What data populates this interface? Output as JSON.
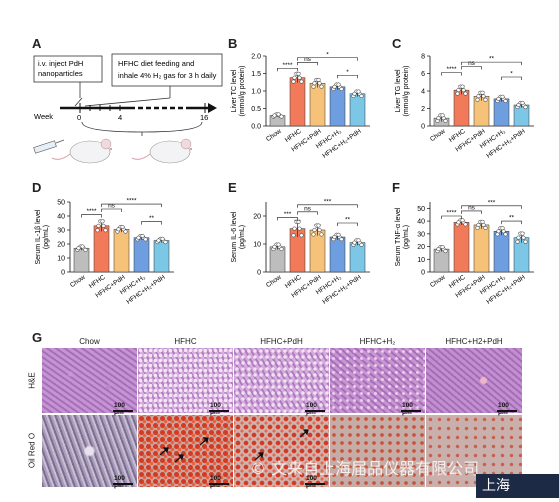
{
  "panel_labels": {
    "A": "A",
    "B": "B",
    "C": "C",
    "D": "D",
    "E": "E",
    "F": "F",
    "G": "G"
  },
  "panelA": {
    "box1": [
      "i.v. inject PdH",
      "nanoparticles"
    ],
    "box2": [
      "HFHC diet feeding and",
      "inhale 4% H₂ gas for 3 h daily"
    ],
    "week_label": "Week",
    "ticks": [
      "0",
      "4",
      "16"
    ]
  },
  "groups": [
    "Chow",
    "HFHC",
    "HFHC+PdH",
    "HFHC+H₂",
    "HFHC+H₂+PdH"
  ],
  "colors": {
    "chow": "#bdbdbd",
    "hfhc": "#f07a5a",
    "pdh": "#f6c27a",
    "h2": "#6e9ee0",
    "h2pdh": "#7cc6e6"
  },
  "chart_data": [
    {
      "id": "B",
      "type": "bar",
      "ylabel": [
        "Liver TC level",
        "(mmol/g protein)"
      ],
      "ylim": [
        0,
        2.0
      ],
      "ticks": [
        "0.0",
        "0.5",
        "1.0",
        "1.5",
        "2.0"
      ],
      "tickvals": [
        0,
        0.5,
        1.0,
        1.5,
        2.0
      ],
      "values": [
        0.3,
        1.38,
        1.22,
        1.12,
        0.92
      ],
      "errors": [
        0.04,
        0.14,
        0.12,
        0.08,
        0.08
      ],
      "sig": [
        {
          "from": 1,
          "to": 2,
          "label": "ns",
          "level": 1.82
        },
        {
          "from": 1,
          "to": 4,
          "label": "*",
          "level": 1.95
        },
        {
          "from": 0,
          "to": 1,
          "label": "****",
          "level": 1.65
        },
        {
          "from": 3,
          "to": 4,
          "label": "*",
          "level": 1.45
        }
      ]
    },
    {
      "id": "C",
      "type": "bar",
      "ylabel": [
        "Liver TG level",
        "(mmol/g protein)"
      ],
      "ylim": [
        0,
        8
      ],
      "ticks": [
        "0",
        "2",
        "4",
        "6",
        "8"
      ],
      "tickvals": [
        0,
        2,
        4,
        6,
        8
      ],
      "values": [
        0.9,
        4.1,
        3.4,
        3.1,
        2.4
      ],
      "errors": [
        0.4,
        0.5,
        0.5,
        0.3,
        0.3
      ],
      "sig": [
        {
          "from": 0,
          "to": 1,
          "label": "****",
          "level": 6.1
        },
        {
          "from": 1,
          "to": 2,
          "label": "ns",
          "level": 6.8
        },
        {
          "from": 1,
          "to": 4,
          "label": "**",
          "level": 7.3
        },
        {
          "from": 3,
          "to": 4,
          "label": "*",
          "level": 5.6
        }
      ]
    },
    {
      "id": "D",
      "type": "bar",
      "ylabel": [
        "Serum IL-1β level",
        "(pg/mL)"
      ],
      "ylim": [
        0,
        50
      ],
      "ticks": [
        "0",
        "10",
        "20",
        "30",
        "40",
        "50"
      ],
      "tickvals": [
        0,
        10,
        20,
        30,
        40,
        50
      ],
      "values": [
        17,
        33,
        30.5,
        24.5,
        22.5
      ],
      "errors": [
        1.5,
        4,
        2,
        1.5,
        1.5
      ],
      "sig": [
        {
          "from": 0,
          "to": 1,
          "label": "****",
          "level": 41
        },
        {
          "from": 1,
          "to": 2,
          "label": "ns",
          "level": 45
        },
        {
          "from": 1,
          "to": 4,
          "label": "****",
          "level": 48.5
        },
        {
          "from": 3,
          "to": 4,
          "label": "**",
          "level": 36
        }
      ]
    },
    {
      "id": "E",
      "type": "bar",
      "ylabel": [
        "Serum IL-6 level",
        "(pg/mL)"
      ],
      "ylim": [
        0,
        25
      ],
      "ticks": [
        "0",
        "10",
        "20"
      ],
      "tickvals": [
        0,
        10,
        20
      ],
      "values": [
        9,
        15.5,
        15,
        12.5,
        10.5
      ],
      "errors": [
        1,
        3,
        2,
        1,
        1
      ],
      "sig": [
        {
          "from": 0,
          "to": 1,
          "label": "***",
          "level": 19.5
        },
        {
          "from": 1,
          "to": 2,
          "label": "ns",
          "level": 21.5
        },
        {
          "from": 1,
          "to": 4,
          "label": "***",
          "level": 24
        },
        {
          "from": 3,
          "to": 4,
          "label": "**",
          "level": 17.5
        }
      ]
    },
    {
      "id": "F",
      "type": "bar",
      "ylabel": [
        "Serum TNF-α level",
        "(pg/mL)"
      ],
      "ylim": [
        0,
        55
      ],
      "ticks": [
        "0",
        "10",
        "20",
        "30",
        "40",
        "50"
      ],
      "tickvals": [
        0,
        10,
        20,
        30,
        40,
        50
      ],
      "values": [
        18,
        39,
        37,
        32,
        27
      ],
      "errors": [
        2,
        2,
        3,
        3,
        4
      ],
      "sig": [
        {
          "from": 0,
          "to": 1,
          "label": "****",
          "level": 44
        },
        {
          "from": 1,
          "to": 2,
          "label": "ns",
          "level": 48
        },
        {
          "from": 1,
          "to": 4,
          "label": "***",
          "level": 52
        },
        {
          "from": 3,
          "to": 4,
          "label": "**",
          "level": 40
        }
      ]
    }
  ],
  "panelG": {
    "columns": [
      "Chow",
      "HFHC",
      "HFHC+PdH",
      "HFHC+H₂",
      "HFHC+H2+PdH"
    ],
    "rows": [
      "H&E",
      "Oil Red O"
    ],
    "scale": "100 μm"
  },
  "watermark": "© 文来自上海届品仪器有限公司",
  "corner_text": "上海"
}
